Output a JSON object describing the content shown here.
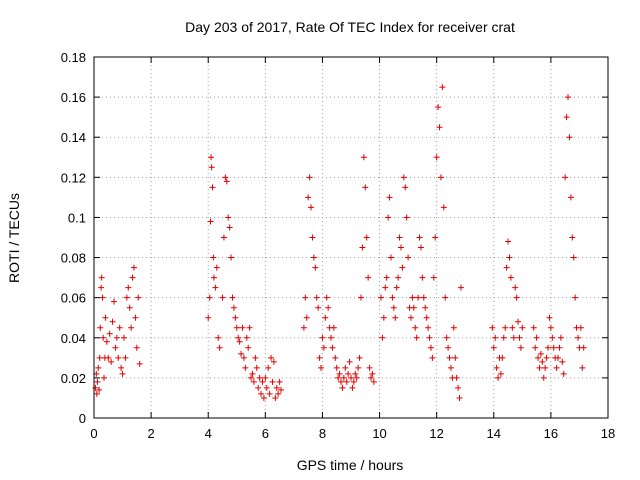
{
  "chart_data": {
    "type": "scatter",
    "title": "Day 203 of 2017, Rate Of TEC Index for receiver crat",
    "xlabel": "GPS time / hours",
    "ylabel": "ROTI / TECUs",
    "xlim": [
      0,
      18
    ],
    "ylim": [
      0,
      0.18
    ],
    "xticks": [
      "0",
      "2",
      "4",
      "6",
      "8",
      "10",
      "12",
      "14",
      "16",
      "18"
    ],
    "yticks": [
      "0",
      "0.02",
      "0.04",
      "0.06",
      "0.08",
      "0.1",
      "0.12",
      "0.14",
      "0.16",
      "0.18"
    ],
    "grid": true,
    "marker": "+",
    "color": "#e00000",
    "series": [
      {
        "points": [
          [
            0.05,
            0.015
          ],
          [
            0.08,
            0.022
          ],
          [
            0.1,
            0.012
          ],
          [
            0.12,
            0.018
          ],
          [
            0.15,
            0.025
          ],
          [
            0.18,
            0.014
          ],
          [
            0.2,
            0.03
          ],
          [
            0.22,
            0.045
          ],
          [
            0.25,
            0.065
          ],
          [
            0.27,
            0.07
          ],
          [
            0.3,
            0.06
          ],
          [
            0.32,
            0.04
          ],
          [
            0.35,
            0.02
          ],
          [
            0.38,
            0.03
          ],
          [
            0.4,
            0.05
          ],
          [
            0.45,
            0.038
          ],
          [
            0.5,
            0.03
          ],
          [
            0.55,
            0.042
          ],
          [
            0.6,
            0.028
          ],
          [
            0.65,
            0.048
          ],
          [
            0.7,
            0.058
          ],
          [
            0.75,
            0.035
          ],
          [
            0.8,
            0.04
          ],
          [
            0.85,
            0.03
          ],
          [
            0.9,
            0.045
          ],
          [
            0.95,
            0.025
          ],
          [
            1.0,
            0.022
          ],
          [
            1.05,
            0.04
          ],
          [
            1.1,
            0.03
          ],
          [
            1.15,
            0.06
          ],
          [
            1.2,
            0.065
          ],
          [
            1.25,
            0.055
          ],
          [
            1.3,
            0.045
          ],
          [
            1.35,
            0.07
          ],
          [
            1.4,
            0.075
          ],
          [
            1.45,
            0.05
          ],
          [
            1.5,
            0.035
          ],
          [
            1.55,
            0.06
          ],
          [
            1.6,
            0.027
          ],
          [
            4.0,
            0.05
          ],
          [
            4.05,
            0.06
          ],
          [
            4.08,
            0.098
          ],
          [
            4.1,
            0.13
          ],
          [
            4.12,
            0.125
          ],
          [
            4.15,
            0.115
          ],
          [
            4.18,
            0.08
          ],
          [
            4.2,
            0.07
          ],
          [
            4.25,
            0.065
          ],
          [
            4.3,
            0.075
          ],
          [
            4.35,
            0.04
          ],
          [
            4.4,
            0.035
          ],
          [
            4.5,
            0.06
          ],
          [
            4.55,
            0.09
          ],
          [
            4.6,
            0.12
          ],
          [
            4.65,
            0.118
          ],
          [
            4.7,
            0.1
          ],
          [
            4.75,
            0.095
          ],
          [
            4.8,
            0.08
          ],
          [
            4.85,
            0.06
          ],
          [
            4.9,
            0.055
          ],
          [
            4.95,
            0.05
          ],
          [
            5.0,
            0.045
          ],
          [
            5.05,
            0.04
          ],
          [
            5.1,
            0.038
          ],
          [
            5.15,
            0.032
          ],
          [
            5.2,
            0.045
          ],
          [
            5.25,
            0.03
          ],
          [
            5.3,
            0.025
          ],
          [
            5.35,
            0.04
          ],
          [
            5.4,
            0.035
          ],
          [
            5.45,
            0.045
          ],
          [
            5.5,
            0.02
          ],
          [
            5.55,
            0.022
          ],
          [
            5.6,
            0.018
          ],
          [
            5.65,
            0.03
          ],
          [
            5.7,
            0.025
          ],
          [
            5.75,
            0.015
          ],
          [
            5.8,
            0.02
          ],
          [
            5.85,
            0.012
          ],
          [
            5.9,
            0.018
          ],
          [
            5.95,
            0.01
          ],
          [
            6.0,
            0.02
          ],
          [
            6.05,
            0.015
          ],
          [
            6.1,
            0.025
          ],
          [
            6.15,
            0.012
          ],
          [
            6.2,
            0.03
          ],
          [
            6.25,
            0.018
          ],
          [
            6.3,
            0.028
          ],
          [
            6.35,
            0.01
          ],
          [
            6.4,
            0.015
          ],
          [
            6.45,
            0.012
          ],
          [
            6.5,
            0.018
          ],
          [
            6.55,
            0.014
          ],
          [
            7.35,
            0.045
          ],
          [
            7.4,
            0.06
          ],
          [
            7.45,
            0.05
          ],
          [
            7.5,
            0.11
          ],
          [
            7.55,
            0.12
          ],
          [
            7.6,
            0.105
          ],
          [
            7.65,
            0.09
          ],
          [
            7.7,
            0.08
          ],
          [
            7.75,
            0.075
          ],
          [
            7.8,
            0.06
          ],
          [
            7.85,
            0.055
          ],
          [
            7.9,
            0.03
          ],
          [
            7.95,
            0.025
          ],
          [
            8.0,
            0.04
          ],
          [
            8.05,
            0.035
          ],
          [
            8.1,
            0.05
          ],
          [
            8.15,
            0.06
          ],
          [
            8.2,
            0.055
          ],
          [
            8.25,
            0.045
          ],
          [
            8.3,
            0.04
          ],
          [
            8.35,
            0.035
          ],
          [
            8.4,
            0.045
          ],
          [
            8.45,
            0.03
          ],
          [
            8.5,
            0.025
          ],
          [
            8.55,
            0.02
          ],
          [
            8.6,
            0.022
          ],
          [
            8.65,
            0.018
          ],
          [
            8.7,
            0.015
          ],
          [
            8.75,
            0.02
          ],
          [
            8.8,
            0.025
          ],
          [
            8.85,
            0.018
          ],
          [
            8.9,
            0.022
          ],
          [
            8.95,
            0.028
          ],
          [
            9.0,
            0.02
          ],
          [
            9.05,
            0.015
          ],
          [
            9.1,
            0.018
          ],
          [
            9.15,
            0.022
          ],
          [
            9.2,
            0.02
          ],
          [
            9.25,
            0.025
          ],
          [
            9.3,
            0.03
          ],
          [
            9.35,
            0.06
          ],
          [
            9.4,
            0.085
          ],
          [
            9.45,
            0.13
          ],
          [
            9.5,
            0.115
          ],
          [
            9.55,
            0.09
          ],
          [
            9.6,
            0.07
          ],
          [
            9.65,
            0.025
          ],
          [
            9.7,
            0.02
          ],
          [
            9.75,
            0.022
          ],
          [
            9.8,
            0.018
          ],
          [
            10.05,
            0.06
          ],
          [
            10.1,
            0.04
          ],
          [
            10.15,
            0.05
          ],
          [
            10.2,
            0.065
          ],
          [
            10.25,
            0.07
          ],
          [
            10.3,
            0.1
          ],
          [
            10.35,
            0.11
          ],
          [
            10.4,
            0.08
          ],
          [
            10.45,
            0.06
          ],
          [
            10.5,
            0.055
          ],
          [
            10.55,
            0.05
          ],
          [
            10.6,
            0.065
          ],
          [
            10.65,
            0.07
          ],
          [
            10.7,
            0.09
          ],
          [
            10.75,
            0.085
          ],
          [
            10.8,
            0.075
          ],
          [
            10.85,
            0.12
          ],
          [
            10.9,
            0.115
          ],
          [
            10.95,
            0.1
          ],
          [
            11.0,
            0.08
          ],
          [
            11.05,
            0.055
          ],
          [
            11.1,
            0.05
          ],
          [
            11.15,
            0.06
          ],
          [
            11.2,
            0.055
          ],
          [
            11.25,
            0.045
          ],
          [
            11.3,
            0.04
          ],
          [
            11.35,
            0.06
          ],
          [
            11.4,
            0.09
          ],
          [
            11.45,
            0.085
          ],
          [
            11.5,
            0.07
          ],
          [
            11.55,
            0.06
          ],
          [
            11.6,
            0.055
          ],
          [
            11.65,
            0.05
          ],
          [
            11.7,
            0.045
          ],
          [
            11.75,
            0.04
          ],
          [
            11.8,
            0.035
          ],
          [
            11.85,
            0.03
          ],
          [
            11.9,
            0.07
          ],
          [
            11.95,
            0.09
          ],
          [
            12.0,
            0.13
          ],
          [
            12.05,
            0.155
          ],
          [
            12.1,
            0.145
          ],
          [
            12.15,
            0.12
          ],
          [
            12.2,
            0.165
          ],
          [
            12.25,
            0.105
          ],
          [
            12.3,
            0.06
          ],
          [
            12.35,
            0.04
          ],
          [
            12.4,
            0.035
          ],
          [
            12.45,
            0.03
          ],
          [
            12.5,
            0.025
          ],
          [
            12.55,
            0.02
          ],
          [
            12.6,
            0.045
          ],
          [
            12.65,
            0.03
          ],
          [
            12.7,
            0.02
          ],
          [
            12.75,
            0.015
          ],
          [
            12.8,
            0.01
          ],
          [
            12.85,
            0.065
          ],
          [
            13.95,
            0.045
          ],
          [
            14.0,
            0.035
          ],
          [
            14.05,
            0.04
          ],
          [
            14.1,
            0.025
          ],
          [
            14.15,
            0.02
          ],
          [
            14.2,
            0.03
          ],
          [
            14.25,
            0.022
          ],
          [
            14.3,
            0.03
          ],
          [
            14.35,
            0.04
          ],
          [
            14.4,
            0.045
          ],
          [
            14.45,
            0.075
          ],
          [
            14.5,
            0.088
          ],
          [
            14.55,
            0.08
          ],
          [
            14.6,
            0.07
          ],
          [
            14.65,
            0.045
          ],
          [
            14.7,
            0.04
          ],
          [
            14.75,
            0.065
          ],
          [
            14.8,
            0.06
          ],
          [
            14.85,
            0.048
          ],
          [
            14.9,
            0.04
          ],
          [
            14.95,
            0.035
          ],
          [
            15.0,
            0.045
          ],
          [
            15.4,
            0.045
          ],
          [
            15.45,
            0.035
          ],
          [
            15.5,
            0.04
          ],
          [
            15.55,
            0.03
          ],
          [
            15.6,
            0.025
          ],
          [
            15.65,
            0.032
          ],
          [
            15.7,
            0.028
          ],
          [
            15.75,
            0.02
          ],
          [
            15.8,
            0.025
          ],
          [
            15.85,
            0.03
          ],
          [
            15.9,
            0.035
          ],
          [
            15.95,
            0.05
          ],
          [
            16.0,
            0.045
          ],
          [
            16.05,
            0.04
          ],
          [
            16.1,
            0.035
          ],
          [
            16.15,
            0.03
          ],
          [
            16.2,
            0.025
          ],
          [
            16.25,
            0.03
          ],
          [
            16.3,
            0.035
          ],
          [
            16.35,
            0.04
          ],
          [
            16.4,
            0.028
          ],
          [
            16.45,
            0.022
          ],
          [
            16.5,
            0.12
          ],
          [
            16.55,
            0.15
          ],
          [
            16.6,
            0.16
          ],
          [
            16.65,
            0.14
          ],
          [
            16.7,
            0.11
          ],
          [
            16.75,
            0.09
          ],
          [
            16.8,
            0.08
          ],
          [
            16.85,
            0.06
          ],
          [
            16.9,
            0.045
          ],
          [
            16.95,
            0.04
          ],
          [
            17.0,
            0.035
          ],
          [
            17.05,
            0.045
          ],
          [
            17.1,
            0.025
          ],
          [
            17.15,
            0.035
          ]
        ]
      }
    ]
  }
}
